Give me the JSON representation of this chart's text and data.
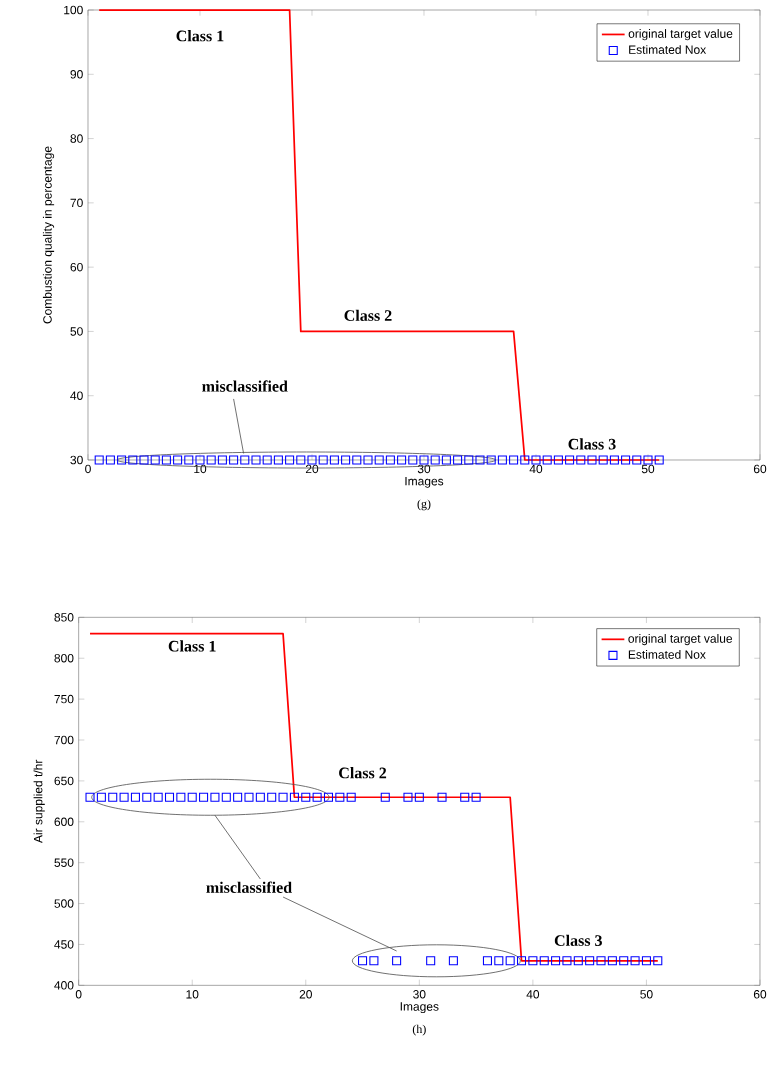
{
  "chart_data": [
    {
      "type": "line",
      "xlabel": "Images",
      "ylabel": "Combustion quality in percentage",
      "xlim": [
        0,
        60
      ],
      "ylim": [
        30,
        100
      ],
      "xticks": [
        0,
        10,
        20,
        30,
        40,
        50,
        60
      ],
      "yticks": [
        30,
        40,
        50,
        60,
        70,
        80,
        90,
        100
      ],
      "legend": "top right",
      "grid": false,
      "series": [
        {
          "name": "original target value",
          "color": "#ff0000",
          "marker": "none",
          "x": [
            1,
            18,
            19,
            38,
            39,
            51
          ],
          "values": [
            100,
            100,
            50,
            50,
            30,
            30
          ]
        },
        {
          "name": "Estimated Nox",
          "type": "scatter",
          "color": "#0000ff",
          "marker": "square",
          "x": [
            1,
            2,
            3,
            4,
            5,
            6,
            7,
            8,
            9,
            10,
            11,
            12,
            13,
            14,
            15,
            16,
            17,
            18,
            19,
            20,
            21,
            22,
            23,
            24,
            25,
            26,
            27,
            28,
            29,
            30,
            31,
            32,
            33,
            34,
            35,
            36,
            37,
            38,
            39,
            40,
            41,
            42,
            43,
            44,
            45,
            46,
            47,
            48,
            49,
            50,
            51
          ],
          "values": [
            30,
            30,
            30,
            30,
            30,
            30,
            30,
            30,
            30,
            30,
            30,
            30,
            30,
            30,
            30,
            30,
            30,
            30,
            30,
            30,
            30,
            30,
            30,
            30,
            30,
            30,
            30,
            30,
            30,
            30,
            30,
            30,
            30,
            30,
            30,
            30,
            30,
            30,
            30,
            30,
            30,
            30,
            30,
            30,
            30,
            30,
            30,
            30,
            30,
            30,
            30
          ]
        }
      ],
      "annotations": [
        "Class 1",
        "Class 2",
        "Class 3",
        {
          "text": "misclassified",
          "x": 14,
          "y": 30
        },
        "(g)"
      ]
    },
    {
      "type": "line",
      "xlabel": "Images",
      "ylabel": "Air supplied t/hr",
      "xlim": [
        0,
        60
      ],
      "ylim": [
        400,
        850
      ],
      "xticks": [
        0,
        10,
        20,
        30,
        40,
        50,
        60
      ],
      "yticks": [
        400,
        450,
        500,
        550,
        600,
        650,
        700,
        750,
        800,
        850
      ],
      "legend": "top right",
      "grid": false,
      "series": [
        {
          "name": "original target value",
          "color": "#ff0000",
          "marker": "none",
          "x": [
            1,
            18,
            19,
            38,
            39,
            51
          ],
          "values": [
            830,
            830,
            630,
            630,
            430,
            430
          ]
        },
        {
          "name": "Estimated Nox",
          "type": "scatter",
          "color": "#0000ff",
          "marker": "square",
          "x": [
            1,
            2,
            3,
            4,
            5,
            6,
            7,
            8,
            9,
            10,
            11,
            12,
            13,
            14,
            15,
            16,
            17,
            18,
            19,
            20,
            21,
            22,
            23,
            24,
            25,
            26,
            27,
            28,
            29,
            30,
            31,
            32,
            33,
            34,
            35,
            36,
            37,
            38,
            39,
            40,
            41,
            42,
            43,
            44,
            45,
            46,
            47,
            48,
            49,
            50,
            51
          ],
          "values": [
            630,
            630,
            630,
            630,
            630,
            630,
            630,
            630,
            630,
            630,
            630,
            630,
            630,
            630,
            630,
            630,
            630,
            630,
            630,
            630,
            630,
            630,
            630,
            630,
            430,
            430,
            630,
            430,
            630,
            630,
            430,
            630,
            430,
            630,
            630,
            430,
            430,
            430,
            430,
            430,
            430,
            430,
            430,
            430,
            430,
            430,
            430,
            430,
            430,
            430,
            430
          ]
        }
      ],
      "annotations": [
        "Class 1",
        "Class 2",
        "Class 3",
        "misclassified",
        "(h)"
      ]
    }
  ]
}
